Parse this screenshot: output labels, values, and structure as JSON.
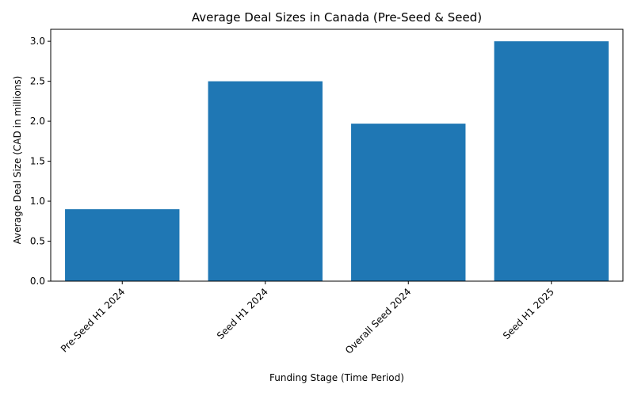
{
  "chart_data": {
    "type": "bar",
    "title": "Average Deal Sizes in Canada (Pre-Seed & Seed)",
    "xlabel": "Funding Stage (Time Period)",
    "ylabel": "Average Deal Size (CAD in millions)",
    "categories": [
      "Pre-Seed H1 2024",
      "Seed H1 2024",
      "Overall Seed 2024",
      "Seed H1 2025"
    ],
    "values": [
      0.9,
      2.5,
      1.97,
      3.0
    ],
    "ylim": [
      0,
      3.15
    ],
    "yticks": [
      "0.0",
      "0.5",
      "1.0",
      "1.5",
      "2.0",
      "2.5",
      "3.0"
    ],
    "grid": false,
    "legend": "none",
    "bar_color": "#1f77b4"
  }
}
